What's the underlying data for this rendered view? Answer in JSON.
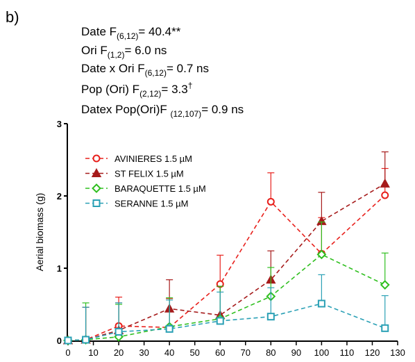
{
  "chart_data": {
    "type": "line",
    "panel_label": "b)",
    "annotations": [
      [
        {
          "t": "Date  F"
        },
        {
          "t": "(6,12)",
          "sub": true
        },
        {
          "t": "= 40.4**"
        }
      ],
      [
        {
          "t": "Ori F"
        },
        {
          "t": "(1,2)",
          "sub": true
        },
        {
          "t": "= 6.0 ns"
        }
      ],
      [
        {
          "t": "Date x Ori F"
        },
        {
          "t": "(6,12)",
          "sub": true
        },
        {
          "t": "= 0.7 ns"
        }
      ],
      [
        {
          "t": "Pop (Ori) F"
        },
        {
          "t": "(2,12)",
          "sub": true
        },
        {
          "t": "= 3.3"
        },
        {
          "t": "†",
          "sup": true
        }
      ],
      [
        {
          "t": "Datex Pop(Ori)F "
        },
        {
          "t": "(12,107)",
          "sub": true
        },
        {
          "t": "= 0.9 ns"
        }
      ]
    ],
    "y_label": "Aerial biomass (g)",
    "x": [
      0,
      7,
      20,
      40,
      60,
      80,
      100,
      125
    ],
    "series": [
      {
        "name": "AVINIERES 1.5 µM",
        "color": "#e8201c",
        "marker": "circle",
        "values": [
          0,
          0.01,
          0.2,
          0.18,
          0.78,
          1.92,
          1.2,
          2.01
        ],
        "errors": [
          0,
          0.45,
          0.4,
          0.4,
          0.4,
          0.4,
          0.5,
          0.37
        ]
      },
      {
        "name": "ST FELIX 1.5 µM",
        "color": "#a61b1b",
        "marker": "triangle",
        "values": [
          0,
          0.01,
          0.14,
          0.44,
          0.35,
          0.84,
          1.65,
          2.17
        ],
        "errors": [
          0,
          0.45,
          0.38,
          0.4,
          0.4,
          0.4,
          0.4,
          0.44
        ]
      },
      {
        "name": "BARAQUETTE 1.5 µM",
        "color": "#2fbf1f",
        "marker": "diamond",
        "values": [
          0,
          0.01,
          0.05,
          0.19,
          0.3,
          0.61,
          1.19,
          0.77
        ],
        "errors": [
          0,
          0.51,
          0.45,
          0.4,
          0.45,
          0.4,
          0.45,
          0.44
        ]
      },
      {
        "name": "SERANNE 1.5 µM",
        "color": "#2aa0b5",
        "marker": "square",
        "values": [
          0,
          0.01,
          0.12,
          0.16,
          0.27,
          0.33,
          0.51,
          0.17
        ],
        "errors": [
          0,
          0.45,
          0.4,
          0.4,
          0.4,
          0.4,
          0.4,
          0.45
        ]
      }
    ],
    "xlim": [
      0,
      130
    ],
    "xticks": [
      0,
      10,
      20,
      30,
      40,
      50,
      60,
      70,
      80,
      90,
      100,
      110,
      120,
      130
    ],
    "ylim": [
      0,
      3
    ],
    "yticks": [
      0,
      1,
      2,
      3
    ],
    "legend": "upper left"
  }
}
